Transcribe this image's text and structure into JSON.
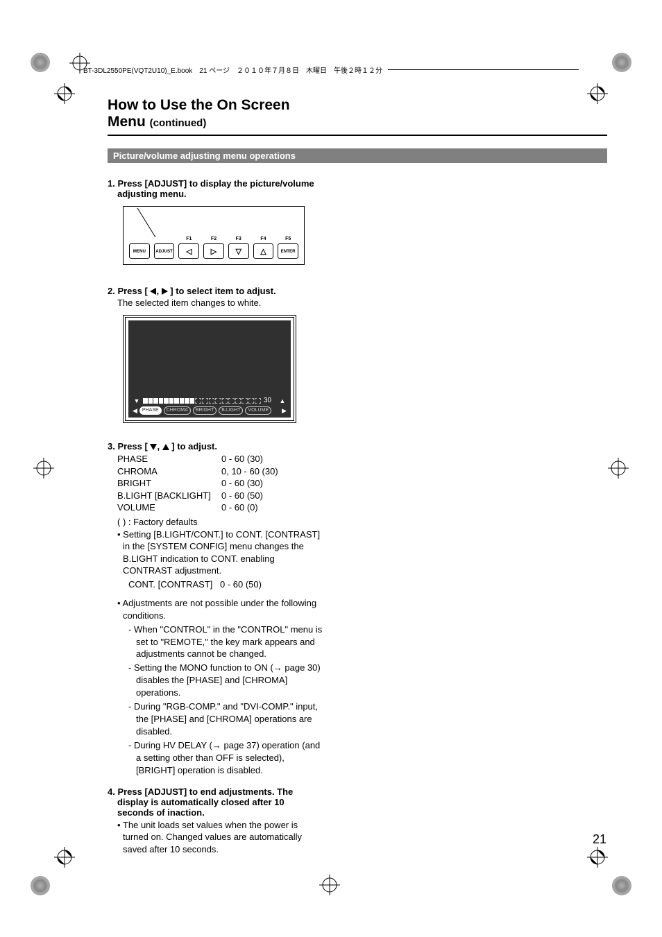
{
  "header_strip": "BT-3DL2550PE(VQT2U10)_E.book　21 ページ　２０１０年７月８日　木曜日　午後２時１２分",
  "title_main": "How to Use the On Screen Menu ",
  "title_sub": "(continued)",
  "section_bar": "Picture/volume adjusting menu operations",
  "step1_head": "1. Press [ADJUST] to display the picture/volume adjusting menu.",
  "remote": {
    "btns": [
      {
        "label": "",
        "text": "MENU"
      },
      {
        "label": "",
        "text": "ADJUST"
      },
      {
        "label": "F1",
        "arrow": "left"
      },
      {
        "label": "F2",
        "arrow": "right"
      },
      {
        "label": "F3",
        "arrow": "down"
      },
      {
        "label": "F4",
        "arrow": "up"
      },
      {
        "label": "F5",
        "text": "ENTER"
      }
    ]
  },
  "step2_head_a": "2. Press [ ",
  "step2_head_b": ", ",
  "step2_head_c": " ] to select item to adjust.",
  "step2_sub": "The selected item changes to white.",
  "osd": {
    "value": "30",
    "segments_total": 20,
    "segments_filled": 10,
    "chips": [
      "PHASE",
      "CHROMA",
      "BRIGHT",
      "B.LIGHT",
      "VOLUME"
    ],
    "active_chip_index": 0
  },
  "step3_head_a": "3. Press [ ",
  "step3_head_b": ", ",
  "step3_head_c": " ] to adjust.",
  "params": [
    {
      "k": "PHASE",
      "v": "0 - 60 (30)"
    },
    {
      "k": "CHROMA",
      "v": "0, 10 - 60 (30)"
    },
    {
      "k": "BRIGHT",
      "v": "0 - 60 (30)"
    },
    {
      "k": "B.LIGHT [BACKLIGHT]",
      "v": "0 - 60 (50)"
    },
    {
      "k": "VOLUME",
      "v": "0 - 60 (0)"
    }
  ],
  "defaults_note": "(  ) : Factory defaults",
  "blight_note": "• Setting [B.LIGHT/CONT.] to CONT. [CONTRAST] in the [SYSTEM CONFIG] menu changes the B.LIGHT indication to CONT. enabling CONTRAST adjustment.",
  "cont_row_k": "CONT. [CONTRAST]",
  "cont_row_v": "0 - 60 (50)",
  "conditions_head": "• Adjustments are not possible under the following conditions.",
  "conditions": [
    "- When \"CONTROL\" in the \"CONTROL\" menu is set to \"REMOTE,\" the key mark appears and adjustments cannot be changed.",
    "- Setting the MONO function to ON (→ page 30) disables the [PHASE] and [CHROMA] operations.",
    "- During \"RGB-COMP.\" and \"DVI-COMP.\" input, the [PHASE] and [CHROMA] operations are disabled.",
    "- During HV DELAY (→ page 37) operation (and a setting other than OFF is selected), [BRIGHT] operation is disabled."
  ],
  "step4_head": "4. Press [ADJUST] to end adjustments. The display is automatically closed after 10 seconds of inaction.",
  "step4_note": "• The unit loads set values when the power is turned on. Changed values are automatically saved after 10 seconds.",
  "page_number": "21",
  "colors": {
    "section_bar_bg": "#808080",
    "osd_bg": "#303030",
    "text": "#000000"
  }
}
